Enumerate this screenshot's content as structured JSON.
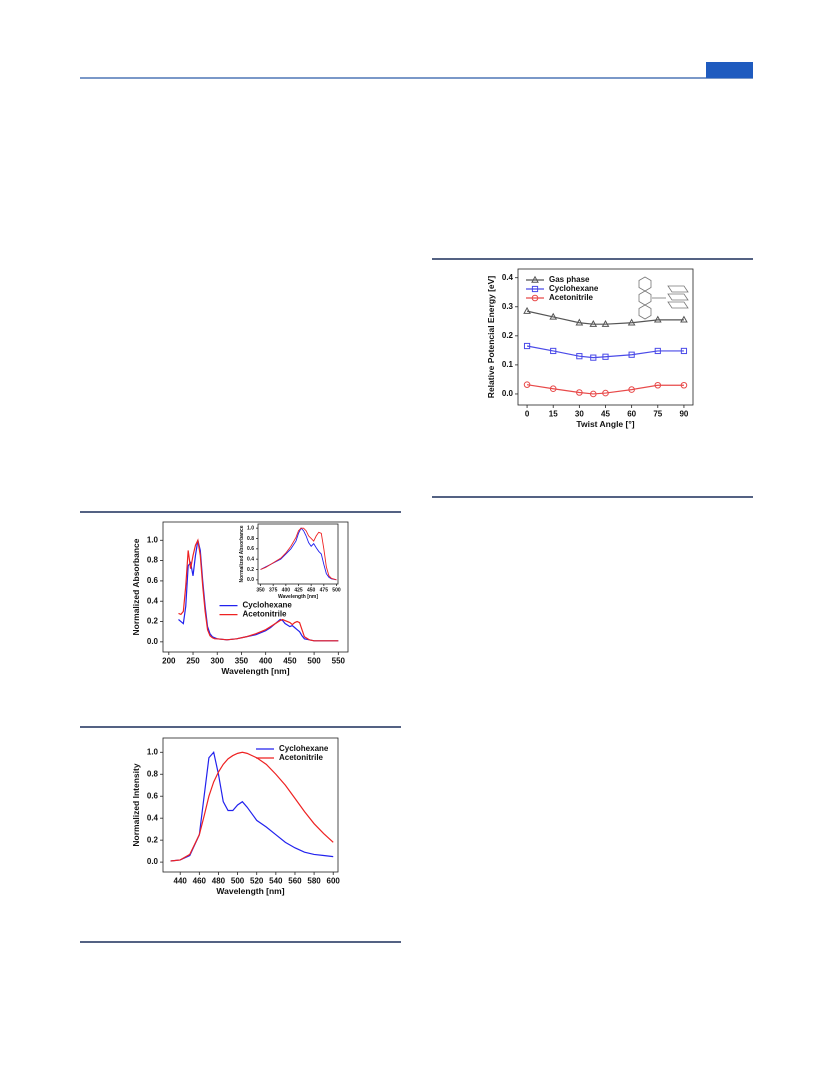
{
  "chart_data": [
    {
      "type": "line",
      "xlabel": "Twist Angle [°]",
      "ylabel": "Relative Potencial Energy [eV]",
      "x": [
        0,
        15,
        30,
        38,
        45,
        60,
        75,
        90
      ],
      "series": [
        {
          "name": "Gas phase",
          "color": "#555555",
          "marker": "triangle",
          "values": [
            0.285,
            0.265,
            0.245,
            0.24,
            0.24,
            0.245,
            0.255,
            0.255
          ]
        },
        {
          "name": "Cyclohexane",
          "color": "#4a4ae8",
          "marker": "square",
          "values": [
            0.165,
            0.148,
            0.13,
            0.125,
            0.128,
            0.135,
            0.148,
            0.148
          ]
        },
        {
          "name": "Acetonitrile",
          "color": "#e84a4a",
          "marker": "circle",
          "values": [
            0.032,
            0.018,
            0.005,
            0.0,
            0.003,
            0.015,
            0.03,
            0.03
          ]
        }
      ],
      "xlim": [
        -5.2,
        95.2
      ],
      "xticks": [
        0,
        15,
        30,
        45,
        60,
        75,
        90
      ],
      "ylim": [
        -0.038,
        0.43
      ],
      "yticks": [
        {
          "value": 0,
          "label": "0.0"
        },
        0.1,
        0.2,
        0.3,
        0.4
      ],
      "legend": "upper left"
    },
    {
      "type": "line",
      "xlabel": "Wavelength [nm]",
      "ylabel": "Normalized Absorbance",
      "x": [
        220,
        225,
        230,
        235,
        240,
        245,
        250,
        255,
        260,
        265,
        270,
        275,
        280,
        285,
        290,
        295,
        300,
        320,
        340,
        360,
        380,
        400,
        410,
        420,
        430,
        435,
        440,
        450,
        455,
        460,
        465,
        470,
        475,
        480,
        490,
        500,
        520,
        550
      ],
      "series": [
        {
          "name": "Cyclohexane",
          "color": "#2222ee",
          "values": [
            0.22,
            0.2,
            0.18,
            0.35,
            0.75,
            0.78,
            0.65,
            0.85,
            1.0,
            0.9,
            0.6,
            0.35,
            0.15,
            0.08,
            0.05,
            0.04,
            0.03,
            0.02,
            0.03,
            0.05,
            0.07,
            0.11,
            0.14,
            0.18,
            0.22,
            0.21,
            0.18,
            0.15,
            0.16,
            0.14,
            0.12,
            0.1,
            0.06,
            0.03,
            0.02,
            0.01,
            0.01,
            0.01
          ]
        },
        {
          "name": "Acetonitrile",
          "color": "#ee2222",
          "values": [
            0.28,
            0.27,
            0.3,
            0.55,
            0.9,
            0.72,
            0.85,
            0.95,
            1.0,
            0.85,
            0.55,
            0.3,
            0.12,
            0.06,
            0.04,
            0.03,
            0.03,
            0.02,
            0.03,
            0.05,
            0.08,
            0.12,
            0.15,
            0.18,
            0.21,
            0.22,
            0.21,
            0.19,
            0.17,
            0.19,
            0.2,
            0.19,
            0.12,
            0.05,
            0.02,
            0.01,
            0.01,
            0.01
          ]
        }
      ],
      "xlim": [
        188,
        570
      ],
      "xticks": [
        200,
        250,
        300,
        350,
        400,
        450,
        500,
        550
      ],
      "ylim": [
        -0.1,
        1.18
      ],
      "yticks": [
        {
          "value": 0,
          "label": "0.0"
        },
        0.2,
        0.4,
        0.6,
        0.8,
        {
          "value": 1,
          "label": "1.0"
        }
      ],
      "legend": "center"
    },
    {
      "type": "line",
      "xlabel": "Wavelength [nm]",
      "ylabel": "Normalized Intensity",
      "x": [
        430,
        440,
        450,
        460,
        465,
        470,
        475,
        480,
        485,
        490,
        495,
        500,
        505,
        510,
        520,
        530,
        540,
        550,
        560,
        570,
        580,
        590,
        600
      ],
      "series": [
        {
          "name": "Cyclohexane",
          "color": "#2222ee",
          "values": [
            0.01,
            0.02,
            0.06,
            0.25,
            0.6,
            0.95,
            1.0,
            0.8,
            0.55,
            0.47,
            0.47,
            0.52,
            0.55,
            0.5,
            0.38,
            0.32,
            0.25,
            0.18,
            0.13,
            0.09,
            0.07,
            0.06,
            0.05
          ]
        },
        {
          "name": "Acetonitrile",
          "color": "#ee2222",
          "values": [
            0.01,
            0.02,
            0.07,
            0.25,
            0.42,
            0.6,
            0.73,
            0.82,
            0.89,
            0.94,
            0.97,
            0.99,
            1.0,
            0.99,
            0.95,
            0.89,
            0.8,
            0.7,
            0.58,
            0.46,
            0.35,
            0.26,
            0.18
          ]
        }
      ],
      "xlim": [
        422,
        605
      ],
      "xticks": [
        440,
        460,
        480,
        500,
        520,
        540,
        560,
        580,
        600
      ],
      "ylim": [
        -0.09,
        1.13
      ],
      "yticks": [
        {
          "value": 0,
          "label": "0.0"
        },
        0.2,
        0.4,
        0.6,
        0.8,
        {
          "value": 1,
          "label": "1.0"
        }
      ],
      "legend": "upper right"
    },
    {
      "type": "line",
      "xlabel": "Wavelength [nm]",
      "ylabel": "Normalized Absorbance",
      "x": [
        350,
        360,
        370,
        380,
        390,
        400,
        410,
        420,
        425,
        430,
        435,
        440,
        445,
        450,
        455,
        460,
        465,
        470,
        475,
        480,
        485,
        490,
        500
      ],
      "series": [
        {
          "color": "#2222ee",
          "values": [
            0.2,
            0.25,
            0.3,
            0.35,
            0.4,
            0.5,
            0.6,
            0.75,
            0.9,
            1.0,
            0.95,
            0.85,
            0.72,
            0.65,
            0.7,
            0.62,
            0.55,
            0.5,
            0.3,
            0.12,
            0.05,
            0.02,
            0.0
          ]
        },
        {
          "color": "#ee2222",
          "values": [
            0.2,
            0.24,
            0.3,
            0.36,
            0.42,
            0.52,
            0.65,
            0.82,
            0.95,
            1.0,
            1.0,
            0.95,
            0.85,
            0.8,
            0.75,
            0.85,
            0.92,
            0.9,
            0.6,
            0.25,
            0.08,
            0.03,
            0.0
          ]
        }
      ],
      "xlim": [
        345,
        503
      ],
      "xticks": [
        350,
        375,
        400,
        425,
        450,
        475,
        500
      ],
      "ylim": [
        -0.08,
        1.08
      ],
      "yticks": [
        {
          "value": 0,
          "label": "0.0"
        },
        0.2,
        0.4,
        0.6,
        0.8,
        {
          "value": 1,
          "label": "1.0"
        }
      ]
    }
  ]
}
